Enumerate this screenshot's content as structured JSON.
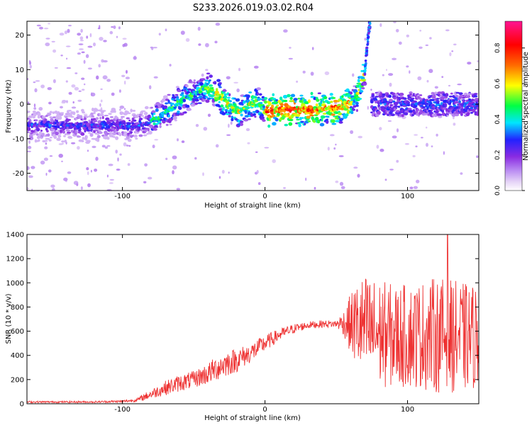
{
  "figure_title": "S233.2026.019.03.02.R04",
  "chart_data": [
    {
      "type": "heatmap",
      "title": "",
      "xlabel": "Height of straight line (km)",
      "ylabel": "Frequency (Hz)",
      "xlim": [
        -167,
        150
      ],
      "ylim": [
        -25,
        24
      ],
      "x_ticks": [
        -100,
        0,
        100
      ],
      "y_ticks": [
        -20,
        -10,
        0,
        10,
        20
      ],
      "colorbar": {
        "label": "Normalized spectral amplitude",
        "range": [
          0.0,
          0.95
        ],
        "ticks": [
          0.0,
          0.2,
          0.4,
          0.6,
          0.8
        ],
        "colormap": [
          "#e6d5f7",
          "#b98af2",
          "#8a2be2",
          "#2222ff",
          "#00e5ff",
          "#00ff44",
          "#ffff00",
          "#ff6a00",
          "#ff0000",
          "#ff1493"
        ]
      },
      "ridge": {
        "x": [
          -167,
          -150,
          -130,
          -110,
          -95,
          -85,
          -75,
          -65,
          -55,
          -48,
          -42,
          -37,
          -32,
          -27,
          -22,
          -18,
          -14,
          -10,
          -6,
          -3,
          0,
          5,
          10,
          20,
          30,
          40,
          50,
          55,
          60,
          63,
          65,
          67,
          70
        ],
        "frequency": [
          -6,
          -6,
          -6.5,
          -6,
          -6.5,
          -6,
          -4,
          -1,
          2,
          3.5,
          4.5,
          4,
          2.5,
          0.5,
          -1.5,
          -2,
          -1,
          0,
          0.5,
          -1,
          -2,
          -2,
          -1.5,
          -1.5,
          -1.5,
          -1.5,
          -1,
          -0.5,
          0.5,
          1.5,
          3,
          5,
          9
        ]
      },
      "right_band": {
        "x_range": [
          75,
          150
        ],
        "frequency_center": 0,
        "spread": 3
      },
      "high_freq_burst": {
        "x": [
          70,
          71,
          72,
          73,
          74
        ],
        "frequency": [
          9,
          14,
          18,
          22,
          24
        ]
      }
    },
    {
      "type": "line",
      "title": "",
      "xlabel": "Height of straight line (km)",
      "ylabel": "SNR (10 * v/v)",
      "xlim": [
        -167,
        150
      ],
      "ylim": [
        0,
        1400
      ],
      "x_ticks": [
        -100,
        0,
        100
      ],
      "y_ticks": [
        0,
        200,
        400,
        600,
        800,
        1000,
        1200,
        1400
      ],
      "color": "#ee3333",
      "envelope": {
        "x": [
          -167,
          -120,
          -100,
          -90,
          -80,
          -70,
          -60,
          -50,
          -40,
          -30,
          -20,
          -10,
          0,
          10,
          20,
          30,
          40,
          50,
          55,
          60,
          65,
          70,
          80,
          90,
          100,
          110,
          120,
          130,
          140,
          150
        ],
        "mean": [
          15,
          15,
          20,
          30,
          80,
          130,
          170,
          200,
          250,
          320,
          360,
          420,
          500,
          570,
          620,
          650,
          660,
          660,
          670,
          660,
          650,
          620,
          580,
          560,
          560,
          570,
          570,
          560,
          550,
          560
        ],
        "spread": [
          8,
          8,
          10,
          15,
          40,
          60,
          70,
          70,
          90,
          110,
          100,
          80,
          70,
          50,
          40,
          30,
          30,
          30,
          100,
          250,
          380,
          450,
          450,
          430,
          430,
          450,
          480,
          470,
          450,
          430
        ]
      },
      "peak": {
        "x": 128,
        "y": 1400
      }
    }
  ]
}
